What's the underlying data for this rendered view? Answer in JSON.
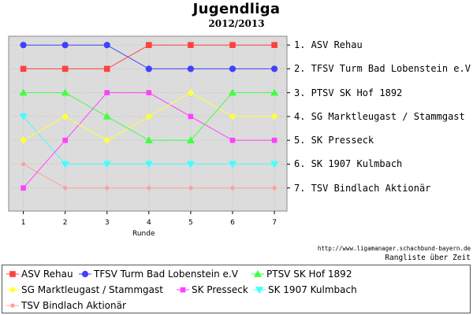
{
  "header": {
    "title": "Jugendliga",
    "subtitle": "2012/2013"
  },
  "footer": {
    "url": "http://www.ligamanager.schachbund-bayern.de",
    "caption": "Rangliste über Zeit"
  },
  "chart_data": {
    "type": "line",
    "title": "Jugendliga",
    "subtitle": "2012/2013",
    "xlabel": "Runde",
    "ylabel": "",
    "x": [
      1,
      2,
      3,
      4,
      5,
      6,
      7
    ],
    "xlim": [
      0.65,
      7.3
    ],
    "ylim": [
      0.63,
      7.97
    ],
    "y_inverted": true,
    "grid": true,
    "legend_position": "bottom",
    "rank_labels": [
      "1. ASV Rehau",
      "2. TFSV Turm Bad Lobenstein e.V",
      "3. PTSV SK Hof 1892",
      "4. SG Marktleugast / Stammgast",
      "5. SK Presseck",
      "6. SK 1907 Kulmbach",
      "7. TSV Bindlach Aktionär"
    ],
    "series": [
      {
        "name": "ASV Rehau",
        "color": "#ff4040",
        "marker": "square",
        "values": [
          2,
          2,
          2,
          1,
          1,
          1,
          1
        ]
      },
      {
        "name": "TFSV Turm Bad Lobenstein e.V",
        "color": "#4040ff",
        "marker": "circle",
        "values": [
          1,
          1,
          1,
          2,
          2,
          2,
          2
        ]
      },
      {
        "name": "PTSV SK Hof 1892",
        "color": "#40ff40",
        "marker": "triangle-up",
        "values": [
          3,
          3,
          4,
          5,
          5,
          3,
          3
        ]
      },
      {
        "name": "SG Marktleugast / Stammgast",
        "color": "#ffff40",
        "marker": "diamond",
        "values": [
          5,
          4,
          5,
          4,
          3,
          4,
          4
        ]
      },
      {
        "name": "SK Presseck",
        "color": "#ff40ff",
        "marker": "square-small",
        "values": [
          7,
          5,
          3,
          3,
          4,
          5,
          5
        ]
      },
      {
        "name": "SK 1907 Kulmbach",
        "color": "#40ffff",
        "marker": "triangle-down",
        "values": [
          4,
          6,
          6,
          6,
          6,
          6,
          6
        ]
      },
      {
        "name": "TSV Bindlach Aktionär",
        "color": "#ffa0a0",
        "marker": "dot",
        "values": [
          6,
          7,
          7,
          7,
          7,
          7,
          7
        ]
      }
    ]
  }
}
